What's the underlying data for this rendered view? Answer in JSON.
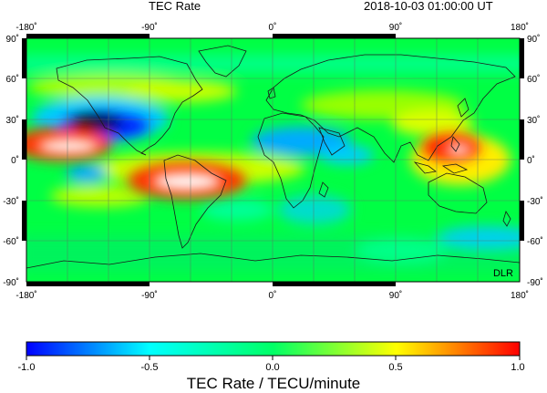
{
  "header": {
    "title": "TEC Rate",
    "timestamp": "2018-10-03  01:00:00 UT"
  },
  "map": {
    "lon_ticks": [
      "-180˚",
      "-90˚",
      "0˚",
      "90˚",
      "180˚"
    ],
    "lat_ticks": [
      "90˚",
      "60˚",
      "30˚",
      "0˚",
      "-30˚",
      "-60˚",
      "-90˚"
    ],
    "credit": "DLR",
    "grid_color": "#5f6f66",
    "coast_color": "#1a1a1a"
  },
  "colorbar": {
    "title": "TEC Rate / TECU/minute",
    "range": [
      -1.0,
      1.0
    ],
    "tick_labels": [
      "-1.0",
      "-0.5",
      "0.0",
      "0.5",
      "1.0"
    ],
    "colormap": [
      "#0000ff",
      "#00ffff",
      "#00ff66",
      "#ffff00",
      "#ff0000"
    ]
  },
  "chart_data": {
    "type": "heatmap",
    "title": "TEC Rate",
    "subtitle": "2018-10-03  01:00:00 UT",
    "xlim": [
      -180,
      180
    ],
    "ylim": [
      -90,
      90
    ],
    "value_range": [
      -1.0,
      1.0
    ],
    "features": [
      {
        "lon": -130,
        "lat": 25,
        "value": -1.0
      },
      {
        "lon": -158,
        "lat": 12,
        "value": 1.0
      },
      {
        "lon": -70,
        "lat": -17,
        "value": 1.0
      },
      {
        "lon": 133,
        "lat": 8,
        "value": 0.9
      },
      {
        "lon": 30,
        "lat": 18,
        "value": -0.45
      },
      {
        "lon": -135,
        "lat": -8,
        "value": -0.3
      },
      {
        "lon": 150,
        "lat": -55,
        "value": -0.35
      },
      {
        "lon": 35,
        "lat": -50,
        "value": -0.25
      }
    ]
  }
}
